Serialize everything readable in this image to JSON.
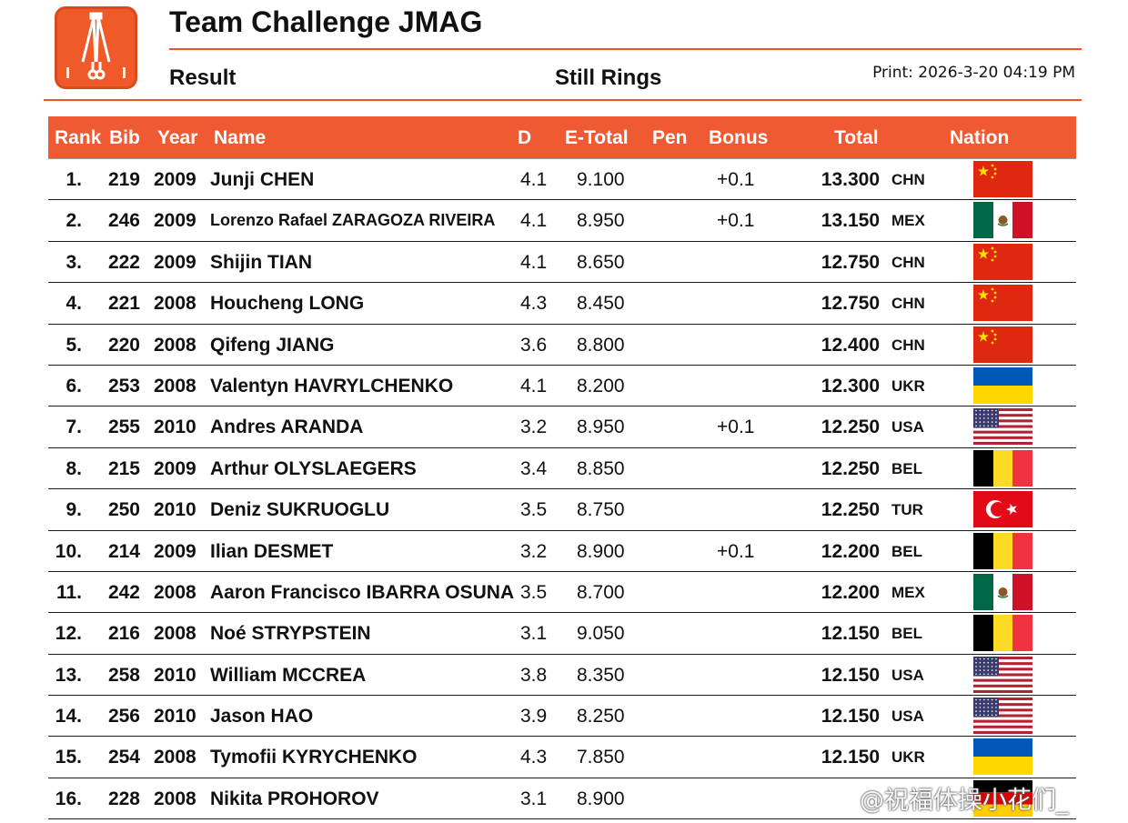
{
  "header": {
    "title": "Team Challenge JMAG",
    "subtitle": "Result",
    "apparatus": "Still Rings",
    "print": "Print: 2026-3-20 04:19 PM"
  },
  "colors": {
    "accent": "#F05A32",
    "rule": "#E8572A"
  },
  "columns": {
    "rank": "Rank",
    "bib": "Bib",
    "year": "Year",
    "name": "Name",
    "d": "D",
    "etotal": "E-Total",
    "pen": "Pen",
    "bonus": "Bonus",
    "total": "Total",
    "nation": "Nation"
  },
  "rows": [
    {
      "rank": "1.",
      "bib": "219",
      "year": "2009",
      "name": "Junji CHEN",
      "d": "4.1",
      "etotal": "9.100",
      "bonus": "+0.1",
      "total": "13.300",
      "nation": "CHN",
      "flag": "china-flag-icon"
    },
    {
      "rank": "2.",
      "bib": "246",
      "year": "2009",
      "name": "Lorenzo Rafael ZARAGOZA RIVEIRA",
      "d": "4.1",
      "etotal": "8.950",
      "bonus": "+0.1",
      "total": "13.150",
      "nation": "MEX",
      "flag": "mexico-flag-icon"
    },
    {
      "rank": "3.",
      "bib": "222",
      "year": "2009",
      "name": "Shijin TIAN",
      "d": "4.1",
      "etotal": "8.650",
      "bonus": "",
      "total": "12.750",
      "nation": "CHN",
      "flag": "china-flag-icon"
    },
    {
      "rank": "4.",
      "bib": "221",
      "year": "2008",
      "name": "Houcheng LONG",
      "d": "4.3",
      "etotal": "8.450",
      "bonus": "",
      "total": "12.750",
      "nation": "CHN",
      "flag": "china-flag-icon"
    },
    {
      "rank": "5.",
      "bib": "220",
      "year": "2008",
      "name": "Qifeng JIANG",
      "d": "3.6",
      "etotal": "8.800",
      "bonus": "",
      "total": "12.400",
      "nation": "CHN",
      "flag": "china-flag-icon"
    },
    {
      "rank": "6.",
      "bib": "253",
      "year": "2008",
      "name": "Valentyn HAVRYLCHENKO",
      "d": "4.1",
      "etotal": "8.200",
      "bonus": "",
      "total": "12.300",
      "nation": "UKR",
      "flag": "ukraine-flag-icon"
    },
    {
      "rank": "7.",
      "bib": "255",
      "year": "2010",
      "name": "Andres ARANDA",
      "d": "3.2",
      "etotal": "8.950",
      "bonus": "+0.1",
      "total": "12.250",
      "nation": "USA",
      "flag": "usa-flag-icon"
    },
    {
      "rank": "8.",
      "bib": "215",
      "year": "2009",
      "name": "Arthur OLYSLAEGERS",
      "d": "3.4",
      "etotal": "8.850",
      "bonus": "",
      "total": "12.250",
      "nation": "BEL",
      "flag": "belgium-flag-icon"
    },
    {
      "rank": "9.",
      "bib": "250",
      "year": "2010",
      "name": "Deniz SUKRUOGLU",
      "d": "3.5",
      "etotal": "8.750",
      "bonus": "",
      "total": "12.250",
      "nation": "TUR",
      "flag": "turkey-flag-icon"
    },
    {
      "rank": "10.",
      "bib": "214",
      "year": "2009",
      "name": "Ilian DESMET",
      "d": "3.2",
      "etotal": "8.900",
      "bonus": "+0.1",
      "total": "12.200",
      "nation": "BEL",
      "flag": "belgium-flag-icon"
    },
    {
      "rank": "11.",
      "bib": "242",
      "year": "2008",
      "name": "Aaron Francisco IBARRA OSUNA",
      "d": "3.5",
      "etotal": "8.700",
      "bonus": "",
      "total": "12.200",
      "nation": "MEX",
      "flag": "mexico-flag-icon"
    },
    {
      "rank": "12.",
      "bib": "216",
      "year": "2008",
      "name": "Noé STRYPSTEIN",
      "d": "3.1",
      "etotal": "9.050",
      "bonus": "",
      "total": "12.150",
      "nation": "BEL",
      "flag": "belgium-flag-icon"
    },
    {
      "rank": "13.",
      "bib": "258",
      "year": "2010",
      "name": "William MCCREA",
      "d": "3.8",
      "etotal": "8.350",
      "bonus": "",
      "total": "12.150",
      "nation": "USA",
      "flag": "usa-flag-icon"
    },
    {
      "rank": "14.",
      "bib": "256",
      "year": "2010",
      "name": "Jason HAO",
      "d": "3.9",
      "etotal": "8.250",
      "bonus": "",
      "total": "12.150",
      "nation": "USA",
      "flag": "usa-flag-icon"
    },
    {
      "rank": "15.",
      "bib": "254",
      "year": "2008",
      "name": "Tymofii KYRYCHENKO",
      "d": "4.3",
      "etotal": "7.850",
      "bonus": "",
      "total": "12.150",
      "nation": "UKR",
      "flag": "ukraine-flag-icon"
    },
    {
      "rank": "16.",
      "bib": "228",
      "year": "2008",
      "name": "Nikita PROHOROV",
      "d": "3.1",
      "etotal": "8.900",
      "bonus": "",
      "total": "",
      "nation": "",
      "flag": "germany-flag-icon"
    }
  ],
  "watermark": "@祝福体操小花们_"
}
